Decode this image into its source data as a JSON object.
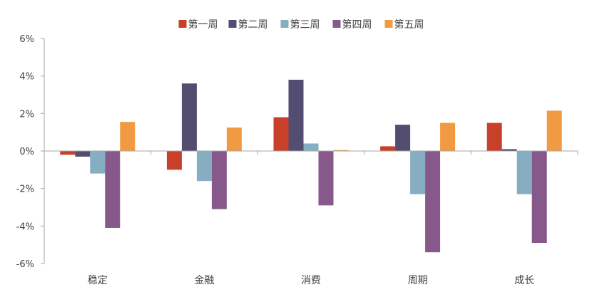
{
  "chart_data": {
    "type": "bar",
    "title": "",
    "xlabel": "",
    "ylabel": "",
    "ylim": [
      -6,
      6
    ],
    "yticks": [
      "-6%",
      "-4%",
      "-2%",
      "0%",
      "2%",
      "4%",
      "6%"
    ],
    "ytick_values": [
      -6,
      -4,
      -2,
      0,
      2,
      4,
      6
    ],
    "categories": [
      "稳定",
      "金融",
      "消费",
      "周期",
      "成长"
    ],
    "series": [
      {
        "name": "第一周",
        "color": "#C9402A",
        "values": [
          -0.2,
          -1.0,
          1.8,
          0.25,
          1.5
        ]
      },
      {
        "name": "第二周",
        "color": "#524D71",
        "values": [
          -0.3,
          3.6,
          3.8,
          1.4,
          0.1
        ]
      },
      {
        "name": "第三周",
        "color": "#86ADC2",
        "values": [
          -1.2,
          -1.6,
          0.4,
          -2.3,
          -2.3
        ]
      },
      {
        "name": "第四周",
        "color": "#87598A",
        "values": [
          -4.1,
          -3.1,
          -2.9,
          -5.4,
          -4.9
        ]
      },
      {
        "name": "第五周",
        "color": "#F19A42",
        "values": [
          1.55,
          1.25,
          0.05,
          1.5,
          2.15
        ]
      }
    ],
    "legend_position": "top-center",
    "grid": false
  }
}
